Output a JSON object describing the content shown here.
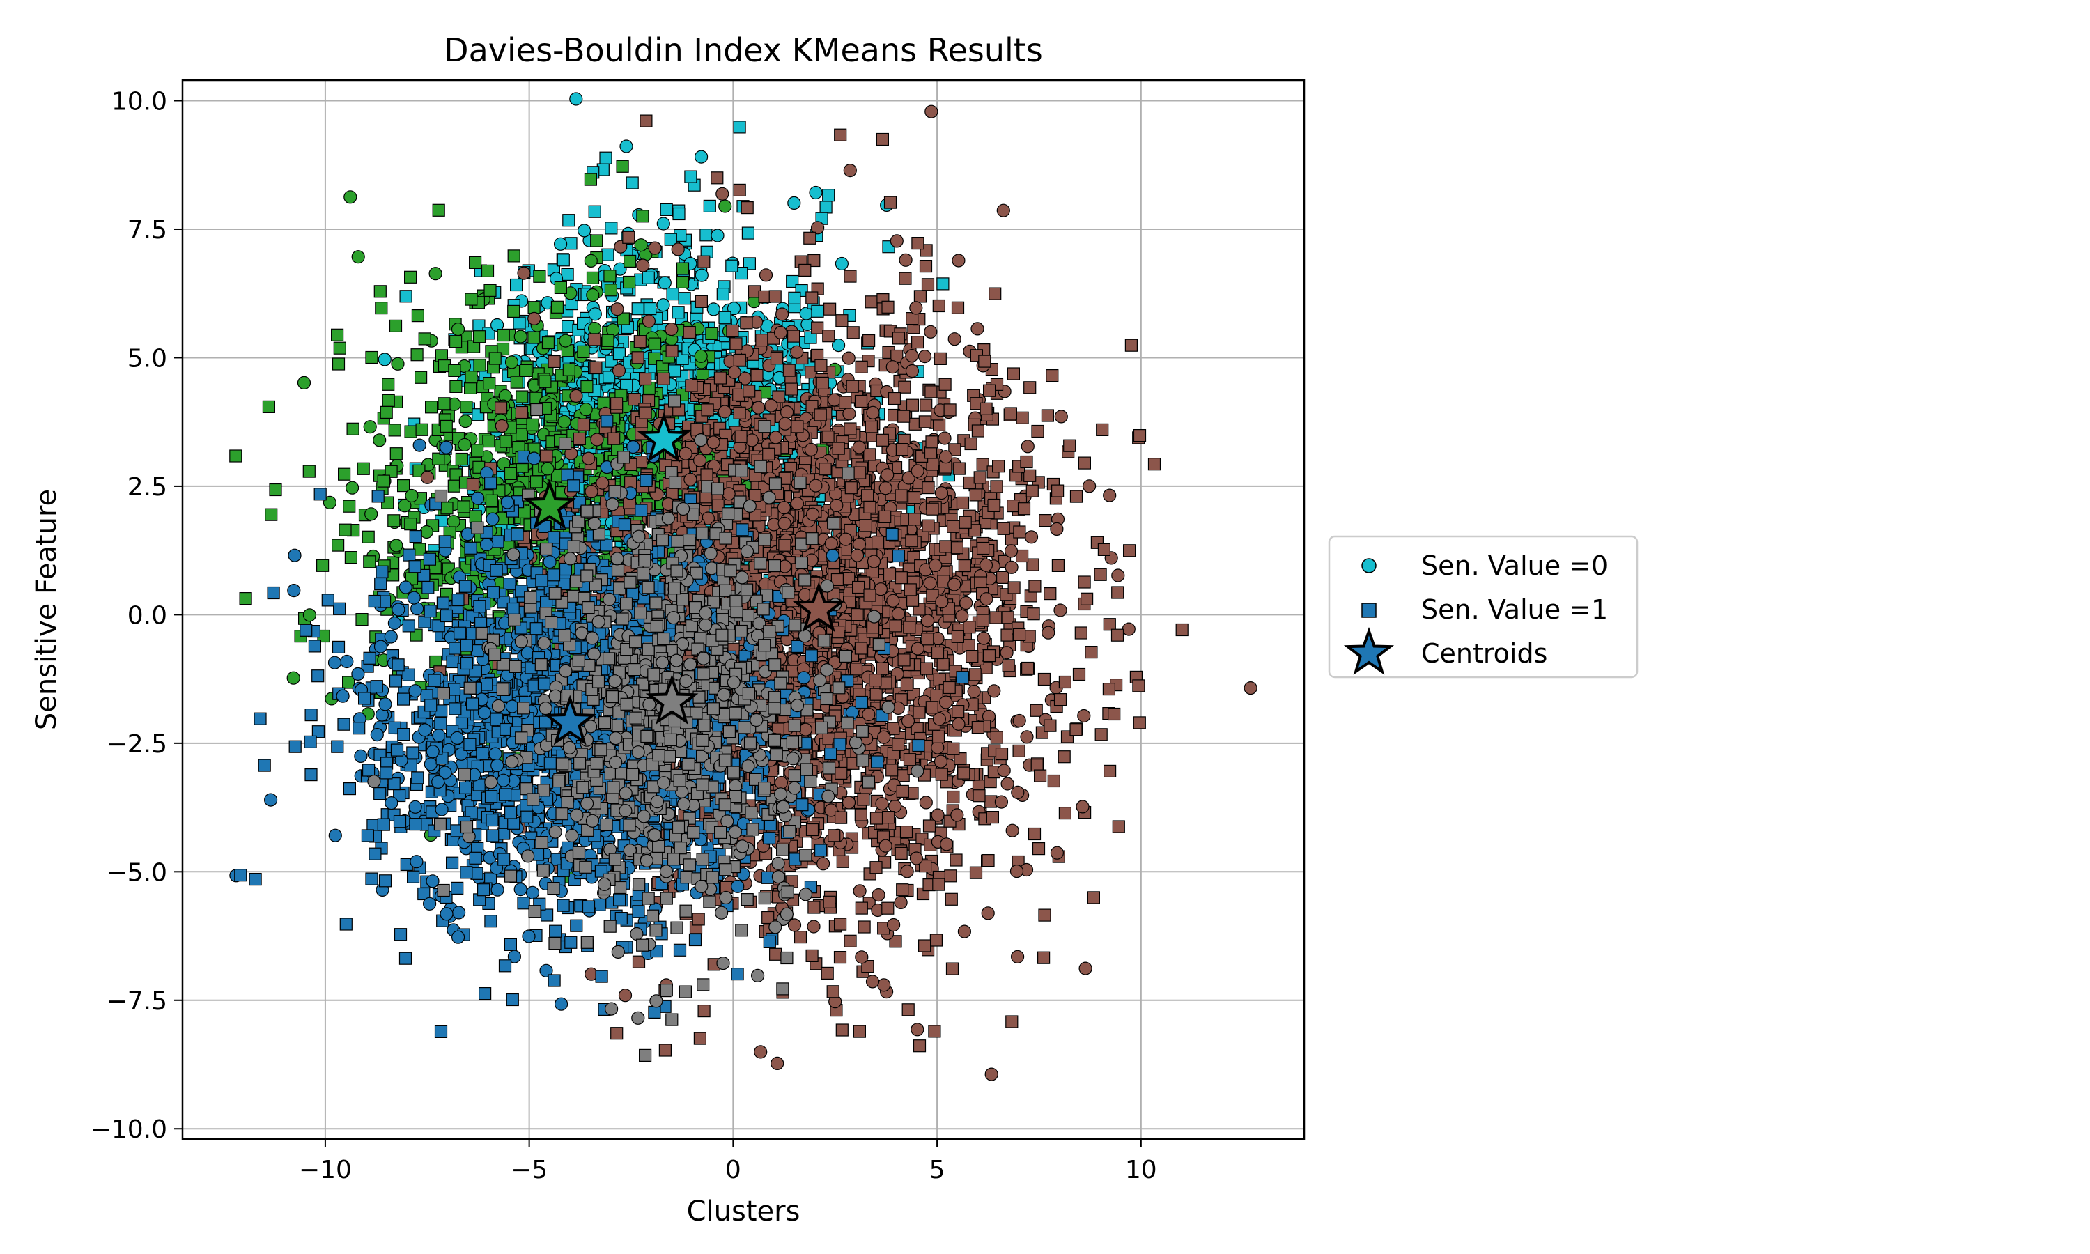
{
  "chart_data": {
    "type": "scatter",
    "title": "Davies-Bouldin Index KMeans Results",
    "xlabel": "Clusters",
    "ylabel": "Sensitive Feature",
    "xlim": [
      -13.5,
      14
    ],
    "ylim": [
      -10.2,
      10.4
    ],
    "x_ticks": [
      -10,
      -5,
      0,
      5,
      10
    ],
    "x_tick_labels": [
      "−10",
      "−5",
      "0",
      "5",
      "10"
    ],
    "y_ticks": [
      -10.0,
      -7.5,
      -5.0,
      -2.5,
      0.0,
      2.5,
      5.0,
      7.5,
      10.0
    ],
    "y_tick_labels": [
      "−10.0",
      "−7.5",
      "−5.0",
      "−2.5",
      "0.0",
      "2.5",
      "5.0",
      "7.5",
      "10.0"
    ],
    "grid": true,
    "legend_placement": "outside-right",
    "legend": [
      {
        "label": "Sen. Value =0",
        "marker": "circle",
        "color": "#17becf"
      },
      {
        "label": "Sen. Value =1",
        "marker": "square",
        "color": "#1f77b4"
      },
      {
        "label": "Centroids",
        "marker": "star",
        "color": "#1f77b4"
      }
    ],
    "clusters": [
      {
        "color": "#17becf",
        "centroid": [
          -1.7,
          3.4
        ],
        "count": 1500,
        "spread": [
          2.2,
          1.9
        ],
        "marker_mix": 0.3
      },
      {
        "color": "#2ca02c",
        "centroid": [
          -4.5,
          2.1
        ],
        "count": 1000,
        "spread": [
          2.4,
          2.1
        ],
        "marker_mix": 0.3
      },
      {
        "color": "#8c564b",
        "centroid": [
          2.1,
          0.1
        ],
        "count": 3000,
        "spread": [
          2.8,
          2.8
        ],
        "marker_mix": 0.3
      },
      {
        "color": "#1f77b4",
        "centroid": [
          -4.0,
          -2.1
        ],
        "count": 1800,
        "spread": [
          2.5,
          1.9
        ],
        "marker_mix": 0.3
      },
      {
        "color": "#7f7f7f",
        "centroid": [
          -1.5,
          -1.7
        ],
        "count": 900,
        "spread": [
          2.0,
          2.0
        ],
        "marker_mix": 0.3
      }
    ],
    "centroids": [
      {
        "x": -1.7,
        "y": 3.4,
        "color": "#17becf"
      },
      {
        "x": -4.5,
        "y": 2.1,
        "color": "#2ca02c"
      },
      {
        "x": 2.1,
        "y": 0.1,
        "color": "#8c564b"
      },
      {
        "x": -4.0,
        "y": -2.1,
        "color": "#1f77b4"
      },
      {
        "x": -1.5,
        "y": -1.7,
        "color": "#7f7f7f"
      }
    ]
  }
}
